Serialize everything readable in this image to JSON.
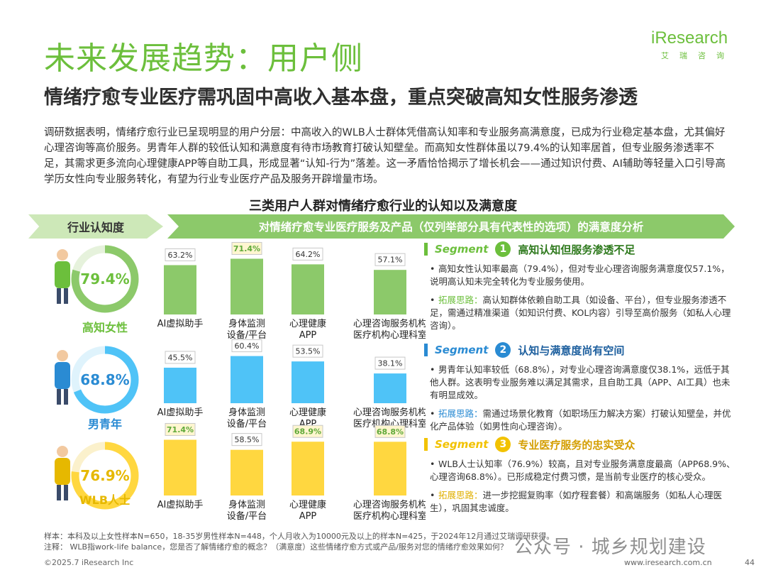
{
  "header": {
    "title": "未来发展趋势：用户侧",
    "subtitle": "情绪疗愈专业医疗需巩固中高收入基本盘，重点突破高知女性服务渗透",
    "logo_main": "iResearch",
    "logo_sub": "艾瑞咨询"
  },
  "lead_paragraph": "调研数据表明，情绪疗愈行业已呈现明显的用户分层：中高收入的WLB人士群体凭借高认知率和专业服务高满意度，已成为行业稳定基本盘，尤其偏好心理咨询等高价服务。男青年人群的较低认知和满意度有待市场教育打破认知壁垒。而高知女性群体虽以79.4%的认知率居首，但专业服务渗透率不足，其需求更多流向心理健康APP等自助工具，形成显著“认知-行为”落差。这一矛盾恰恰揭示了增长机会——通过知识付费、AI辅助等轻量入口引导高学历女性向专业服务转化，有望为行业专业医疗产品及服务开辟增量市场。",
  "chart_title": "三类用户人群对情绪疗愈行业的认知以及满意度",
  "banners": {
    "left": "行业认知度",
    "right": "对情绪疗愈专业医疗服务及产品（仅列举部分具有代表性的选项）的满意度分析"
  },
  "colors": {
    "green": "#8cc96a",
    "green_dark": "#6cbf3c",
    "blue": "#4fc3f7",
    "blue_dark": "#2a8bd3",
    "yellow": "#ffd740",
    "yellow_dark": "#e6b800"
  },
  "chart_data": {
    "type": "bar",
    "categories": [
      "AI虚拟助手",
      "身体监测设备/平台",
      "心理健康APP",
      "心理咨询服务机构医疗机构心理科室"
    ],
    "category_lines": [
      [
        "AI虚拟助手"
      ],
      [
        "身体监测",
        "设备/平台"
      ],
      [
        "心理健康",
        "APP"
      ],
      [
        "心理咨询服务机构",
        "医疗机构心理科室"
      ]
    ],
    "ylim": [
      0,
      100
    ],
    "groups": [
      {
        "name": "高知女性",
        "awareness": 79.4,
        "awareness_label": "79.4%",
        "values": [
          63.2,
          71.4,
          64.2,
          57.1
        ],
        "labels": [
          "63.2%",
          "71.4%",
          "64.2%",
          "57.1%"
        ],
        "highlight": [
          false,
          true,
          false,
          false
        ]
      },
      {
        "name": "男青年",
        "awareness": 68.8,
        "awareness_label": "68.8%",
        "values": [
          45.5,
          60.4,
          53.5,
          38.1
        ],
        "labels": [
          "45.5%",
          "60.4%",
          "53.5%",
          "38.1%"
        ],
        "highlight": [
          false,
          false,
          false,
          false
        ]
      },
      {
        "name": "WLB人士",
        "awareness": 76.9,
        "awareness_label": "76.9%",
        "values": [
          71.4,
          58.5,
          68.9,
          68.8
        ],
        "labels": [
          "71.4%",
          "58.5%",
          "68.9%",
          "68.8%"
        ],
        "highlight": [
          true,
          false,
          true,
          true
        ]
      }
    ]
  },
  "segments": [
    {
      "word": "Segment",
      "num": "1",
      "title": "高知认知但服务渗透不足",
      "b1": "高知女性认知率最高（79.4%），但对专业心理咨询服务满意度仅57.1%，说明高认知未完全转化为专业服务使用。",
      "b2_hint": "拓展思路：",
      "b2": "高认知群体依赖自助工具（如设备、平台），但专业服务渗透不足，需通过精准渠道（如知识付费、KOL内容）引导至高价服务（如私人心理咨询）。"
    },
    {
      "word": "Segment",
      "num": "2",
      "title": "认知与满意度尚有空间",
      "b1": "男青年认知率较低（68.8%），对专业心理咨询满意度仅38.1%，远低于其他人群。这表明专业服务难以满足其需求，且自助工具（APP、AI工具）也未有明显成效。",
      "b2_hint": "拓展思路：",
      "b2": "需通过场景化教育（如职场压力解决方案）打破认知壁垒，并优化产品体验（如男性向心理咨询）。"
    },
    {
      "word": "Segment",
      "num": "3",
      "title": "专业医疗服务的忠实受众",
      "b1": "WLB人士认知率（76.9%）较高，且对专业服务满意度最高（APP68.9%、心理咨询68.8%）。已形成稳定付费习惯，是当前专业医疗的核心受众。",
      "b2_hint": "拓展思路：",
      "b2": "进一步挖掘复购率（如疗程套餐）和高端服务（如私人心理医生），巩固其忠诚度。"
    }
  ],
  "notes": {
    "sample": "样本：本科及以上女性样本N=650，18-35岁男性样本N=448，个人月收入为10000元及以上的样本N=425，于2024年12月通过艾瑞调研获得。",
    "note": "注释：  WLB指work-life balance，您是否了解情绪疗愈的概念？（满意度）这些情绪疗愈方式或产品/服务对您的情绪疗愈效果如何？"
  },
  "footer": {
    "copyright": "©2025.7 iResearch Inc",
    "url": "www.iresearch.com.cn",
    "page": "44"
  },
  "watermark": "公众号 · 城乡规划建设"
}
